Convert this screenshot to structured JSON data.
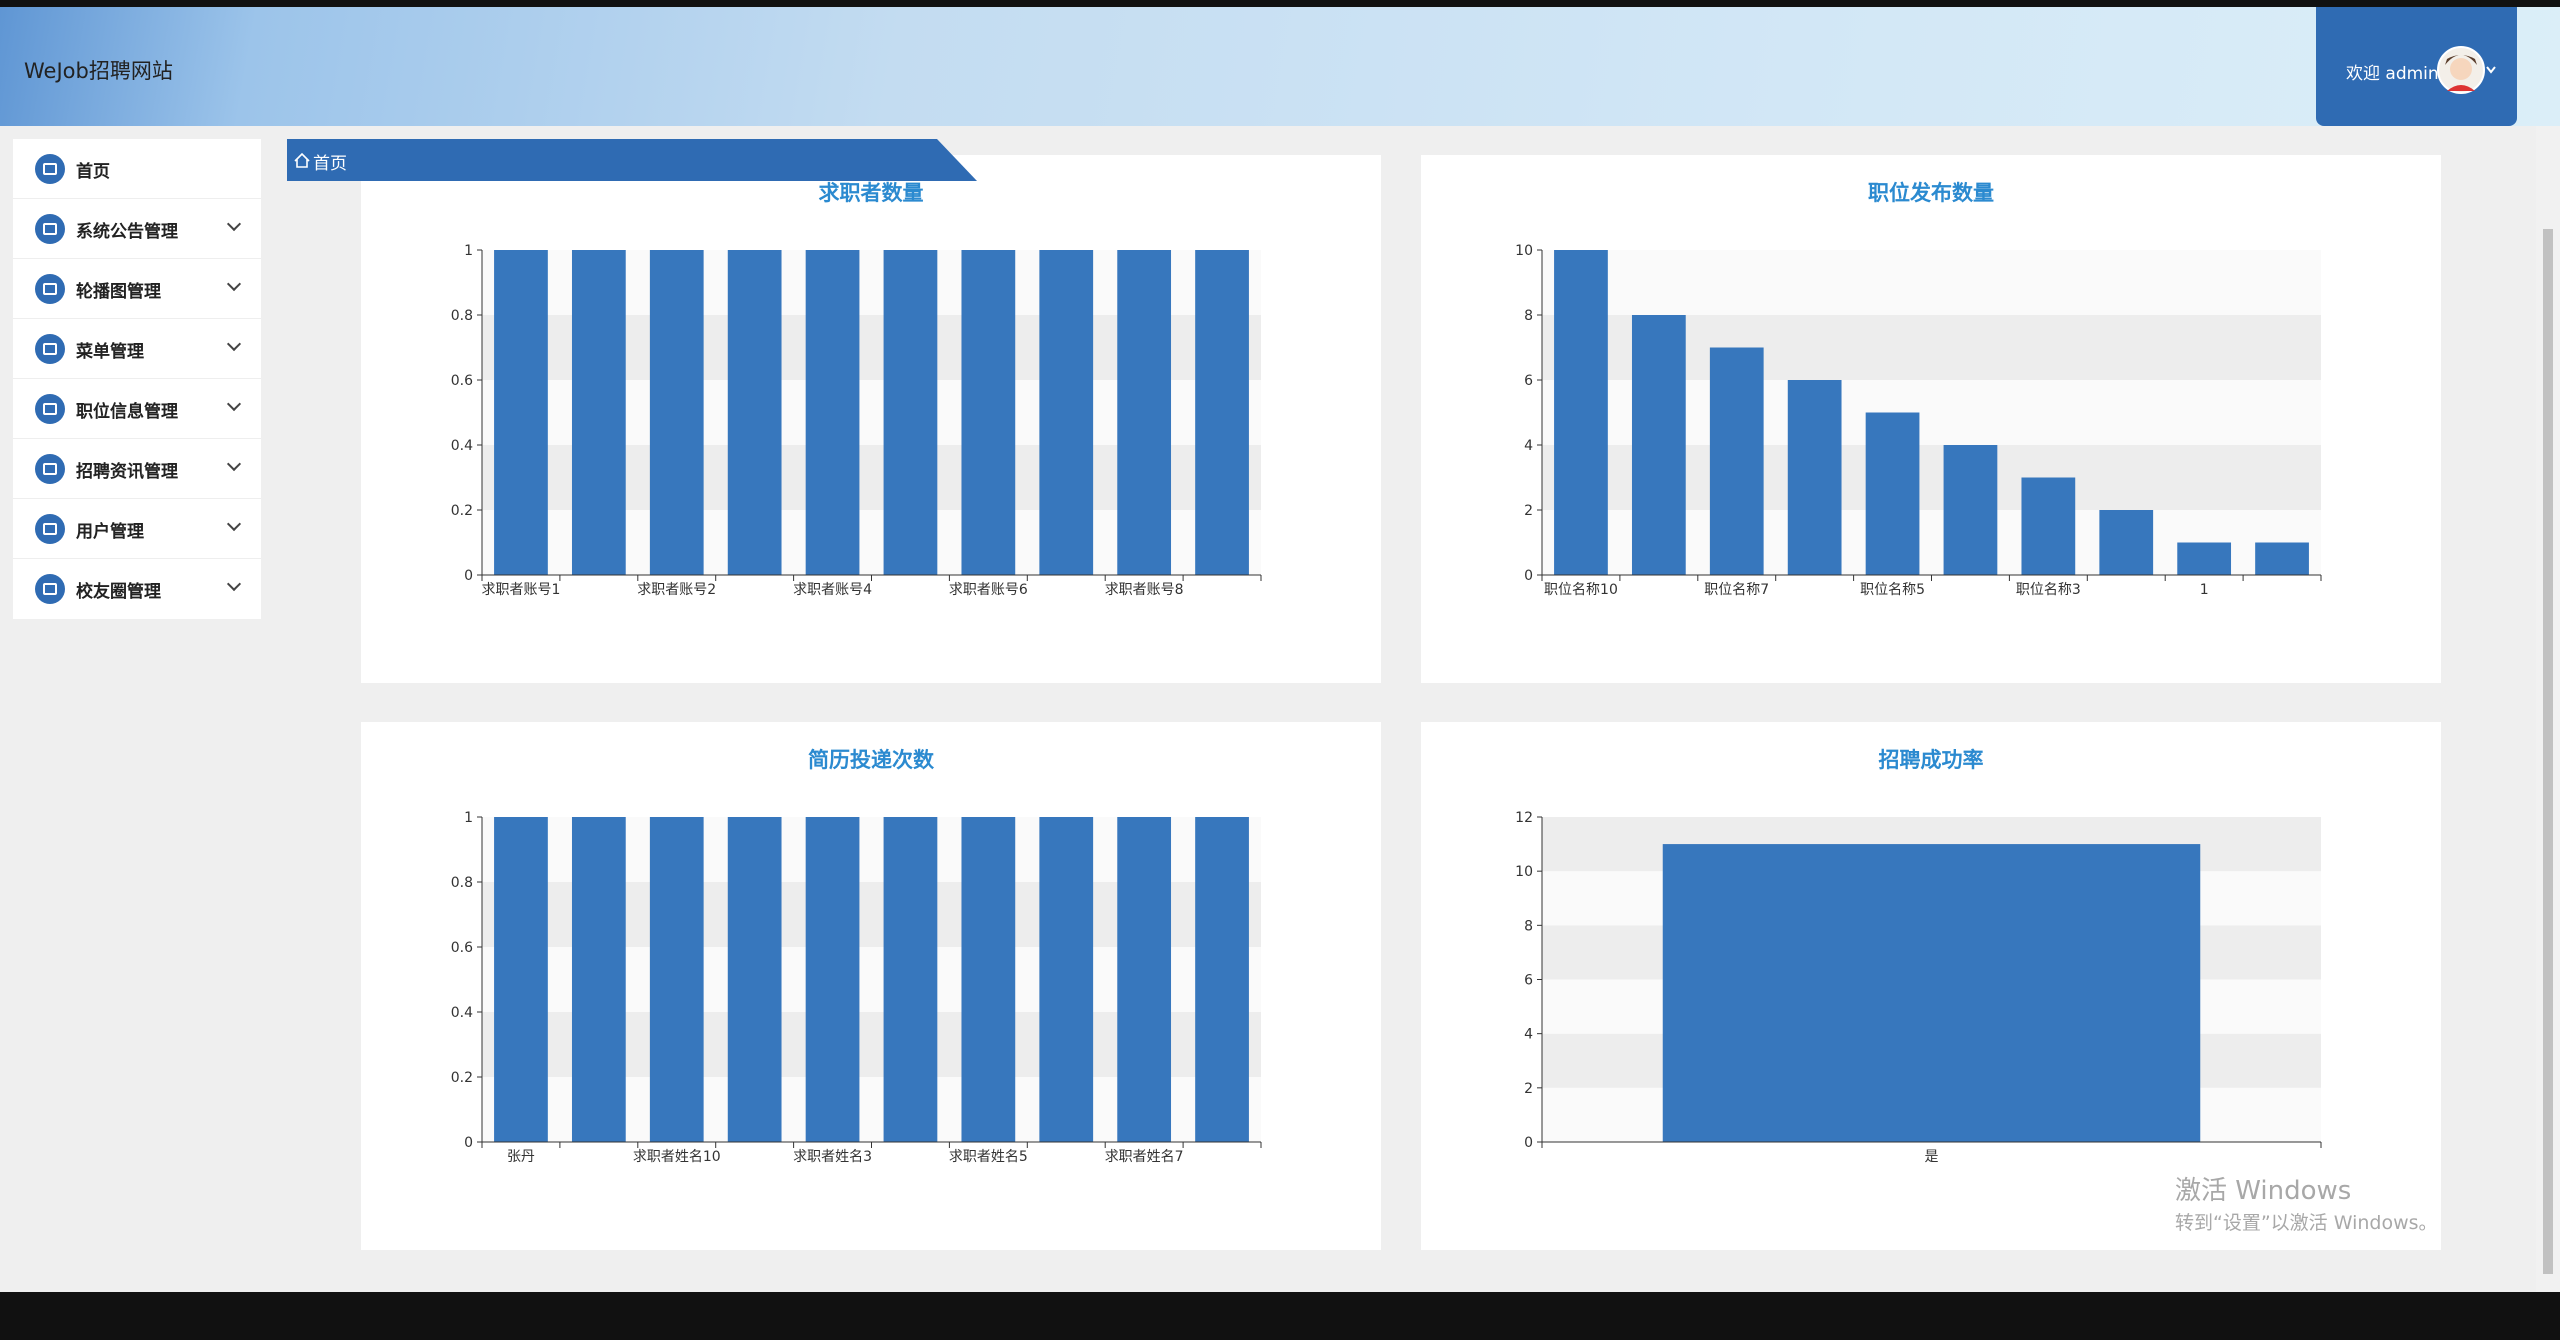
{
  "header": {
    "title": "WeJob招聘网站",
    "welcome": "欢迎 admin"
  },
  "sidebar": {
    "items": [
      "首页",
      "系统公告管理",
      "轮播图管理",
      "菜单管理",
      "职位信息管理",
      "招聘资讯管理",
      "用户管理",
      "校友圈管理"
    ]
  },
  "breadcrumb": "首页",
  "chart_data": [
    {
      "type": "bar",
      "title": "求职者数量",
      "categories": [
        "求职者账号1",
        null,
        "求职者账号2",
        null,
        "求职者账号4",
        null,
        "求职者账号6",
        null,
        "求职者账号8",
        null
      ],
      "values": [
        1,
        1,
        1,
        1,
        1,
        1,
        1,
        1,
        1,
        1
      ],
      "color": "#3777bd",
      "ylim": [
        0,
        1
      ],
      "yticks": [
        0,
        0.2,
        0.4,
        0.6,
        0.8,
        1
      ],
      "grid": true
    },
    {
      "type": "bar",
      "title": "职位发布数量",
      "categories": [
        "职位名称10",
        null,
        "职位名称7",
        null,
        "职位名称5",
        null,
        "职位名称3",
        null,
        "1",
        null
      ],
      "values": [
        10,
        8,
        7,
        6,
        5,
        4,
        3,
        2,
        1,
        1
      ],
      "color": "#3777bd",
      "ylim": [
        0,
        10
      ],
      "yticks": [
        0,
        2,
        4,
        6,
        8,
        10
      ],
      "grid": true
    },
    {
      "type": "bar",
      "title": "简历投递次数",
      "categories": [
        "张丹",
        null,
        "求职者姓名10",
        null,
        "求职者姓名3",
        null,
        "求职者姓名5",
        null,
        "求职者姓名7",
        null
      ],
      "values": [
        1,
        1,
        1,
        1,
        1,
        1,
        1,
        1,
        1,
        1
      ],
      "color": "#3777bd",
      "ylim": [
        0,
        1
      ],
      "yticks": [
        0,
        0.2,
        0.4,
        0.6,
        0.8,
        1
      ],
      "grid": true
    },
    {
      "type": "bar",
      "title": "招聘成功率",
      "categories": [
        "是"
      ],
      "values": [
        11
      ],
      "color": "#3777bd",
      "ylim": [
        0,
        12
      ],
      "yticks": [
        0,
        2,
        4,
        6,
        8,
        10,
        12
      ],
      "grid": true
    }
  ],
  "watermark": {
    "title": "激活 Windows",
    "subtitle": "转到“设置”以激活 Windows。"
  }
}
